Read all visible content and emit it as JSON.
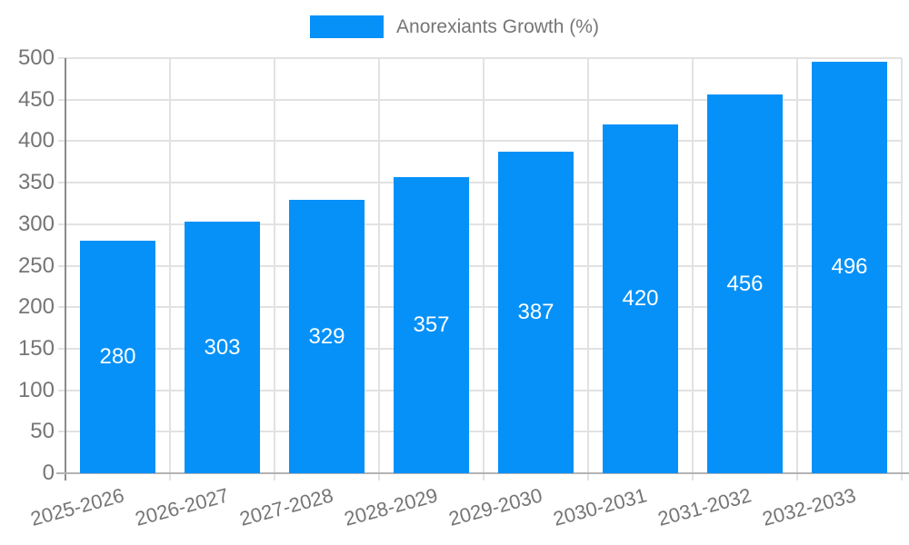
{
  "legend": {
    "label": "Anorexiants Growth (%)"
  },
  "colors": {
    "bar": "#0591f8",
    "grid": "#e2e2e2",
    "axis": "#8a8a8a",
    "baseline": "#b3b3b3",
    "text": "#757575",
    "value_text": "#ffffff",
    "bg": "#ffffff"
  },
  "chart_data": {
    "type": "bar",
    "title": "Anorexiants Growth (%)",
    "categories": [
      "2025-2026",
      "2026-2027",
      "2027-2028",
      "2028-2029",
      "2029-2030",
      "2030-2031",
      "2031-2032",
      "2032-2033"
    ],
    "values": [
      280,
      303,
      329,
      357,
      387,
      420,
      456,
      496
    ],
    "series": [
      {
        "name": "Anorexiants Growth (%)",
        "values": [
          280,
          303,
          329,
          357,
          387,
          420,
          456,
          496
        ]
      }
    ],
    "xlabel": "",
    "ylabel": "",
    "ylim": [
      0,
      500
    ],
    "ytick_step": 50,
    "yticks": [
      0,
      50,
      100,
      150,
      200,
      250,
      300,
      350,
      400,
      450,
      500
    ],
    "grid": true,
    "legend_position": "top-center",
    "value_labels": "inside-middle",
    "x_label_rotation_deg": -15
  }
}
